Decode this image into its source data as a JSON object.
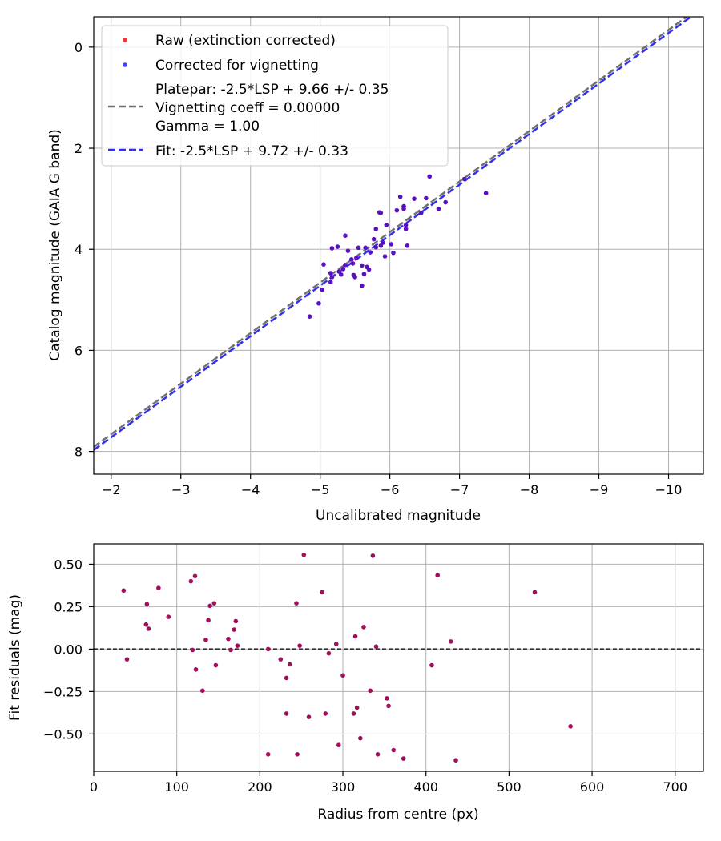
{
  "chart_data": [
    {
      "type": "scatter",
      "xlabel": "Uncalibrated magnitude",
      "ylabel": "Catalog magnitude (GAIA G band)",
      "xlim": [
        -1.75,
        -10.5
      ],
      "ylim": [
        8.45,
        -0.6
      ],
      "xticks": [
        -2,
        -3,
        -4,
        -5,
        -6,
        -7,
        -8,
        -9,
        -10
      ],
      "xtick_labels": [
        "−2",
        "−3",
        "−4",
        "−5",
        "−6",
        "−7",
        "−8",
        "−9",
        "−10"
      ],
      "yticks": [
        0,
        2,
        4,
        6,
        8
      ],
      "ytick_labels": [
        "0",
        "2",
        "4",
        "6",
        "8"
      ],
      "grid": true,
      "legend": {
        "position": "top-left",
        "raw_label": "Raw (extinction corrected)",
        "corrected_label": "Corrected for vignetting",
        "platepar_lines": [
          "Platepar: -2.5*LSP + 9.66 +/- 0.35",
          "Vignetting coeff = 0.00000",
          "Gamma = 1.00"
        ],
        "fit_label": "Fit: -2.5*LSP + 9.72 +/- 0.33"
      },
      "colors": {
        "raw": "#ff3030",
        "corrected": "#4040ff",
        "combined": "#5a10c0",
        "platepar_line": "#707070",
        "fit_line": "#3030ee"
      },
      "platepar_line": {
        "slope": 1.0,
        "intercept": 9.66
      },
      "fit_line": {
        "slope": 1.0,
        "intercept": 9.72
      },
      "points": [
        [
          -4.85,
          5.33
        ],
        [
          -4.98,
          5.07
        ],
        [
          -5.03,
          4.8
        ],
        [
          -5.05,
          4.3
        ],
        [
          -5.15,
          4.47
        ],
        [
          -5.15,
          4.65
        ],
        [
          -5.17,
          4.55
        ],
        [
          -5.17,
          3.98
        ],
        [
          -5.25,
          3.95
        ],
        [
          -5.27,
          4.44
        ],
        [
          -5.3,
          4.5
        ],
        [
          -5.33,
          4.39
        ],
        [
          -5.36,
          4.31
        ],
        [
          -5.36,
          3.73
        ],
        [
          -5.4,
          4.03
        ],
        [
          -5.45,
          4.2
        ],
        [
          -5.47,
          4.28
        ],
        [
          -5.48,
          4.51
        ],
        [
          -5.5,
          4.55
        ],
        [
          -5.52,
          4.17
        ],
        [
          -5.55,
          3.97
        ],
        [
          -5.6,
          4.32
        ],
        [
          -5.6,
          4.72
        ],
        [
          -5.63,
          4.49
        ],
        [
          -5.65,
          3.97
        ],
        [
          -5.67,
          4.35
        ],
        [
          -5.7,
          4.4
        ],
        [
          -5.72,
          4.06
        ],
        [
          -5.77,
          3.8
        ],
        [
          -5.8,
          3.96
        ],
        [
          -5.8,
          3.6
        ],
        [
          -5.85,
          3.27
        ],
        [
          -5.87,
          3.28
        ],
        [
          -5.87,
          3.93
        ],
        [
          -5.9,
          3.87
        ],
        [
          -5.93,
          4.14
        ],
        [
          -5.95,
          3.52
        ],
        [
          -6.02,
          3.9
        ],
        [
          -6.05,
          4.07
        ],
        [
          -6.1,
          3.23
        ],
        [
          -6.15,
          2.96
        ],
        [
          -6.2,
          3.2
        ],
        [
          -6.2,
          3.15
        ],
        [
          -6.23,
          3.6
        ],
        [
          -6.23,
          3.52
        ],
        [
          -6.25,
          3.93
        ],
        [
          -6.35,
          3.0
        ],
        [
          -6.45,
          3.28
        ],
        [
          -6.52,
          2.99
        ],
        [
          -6.57,
          2.56
        ],
        [
          -6.7,
          3.2
        ],
        [
          -6.8,
          3.07
        ],
        [
          -7.07,
          2.61
        ],
        [
          -7.38,
          2.89
        ]
      ]
    },
    {
      "type": "scatter",
      "xlabel": "Radius from centre (px)",
      "ylabel": "Fit residuals (mag)",
      "xlim": [
        0,
        734
      ],
      "ylim": [
        -0.72,
        0.62
      ],
      "xticks": [
        0,
        100,
        200,
        300,
        400,
        500,
        600,
        700
      ],
      "xtick_labels": [
        "0",
        "100",
        "200",
        "300",
        "400",
        "500",
        "600",
        "700"
      ],
      "yticks": [
        0.5,
        0.25,
        0.0,
        -0.25,
        -0.5
      ],
      "ytick_labels": [
        "0.50",
        "0.25",
        "0.00",
        "−0.25",
        "−0.50"
      ],
      "grid": true,
      "reference_line": 0.0,
      "colors": {
        "points": "#a0105a",
        "reference_line": "#333333"
      },
      "points": [
        [
          36,
          0.345
        ],
        [
          40,
          -0.06
        ],
        [
          63,
          0.145
        ],
        [
          64,
          0.265
        ],
        [
          66,
          0.12
        ],
        [
          78,
          0.36
        ],
        [
          90,
          0.19
        ],
        [
          117,
          0.4
        ],
        [
          119,
          -0.005
        ],
        [
          122,
          0.43
        ],
        [
          123,
          -0.12
        ],
        [
          131,
          -0.245
        ],
        [
          135,
          0.055
        ],
        [
          138,
          0.17
        ],
        [
          140,
          0.255
        ],
        [
          145,
          0.27
        ],
        [
          147,
          -0.095
        ],
        [
          162,
          0.06
        ],
        [
          165,
          -0.005
        ],
        [
          169,
          0.115
        ],
        [
          171,
          0.165
        ],
        [
          173,
          0.02
        ],
        [
          210,
          0.0
        ],
        [
          210,
          -0.62
        ],
        [
          225,
          -0.06
        ],
        [
          232,
          -0.38
        ],
        [
          232,
          -0.17
        ],
        [
          236,
          -0.09
        ],
        [
          244,
          0.27
        ],
        [
          245,
          -0.62
        ],
        [
          248,
          0.02
        ],
        [
          253,
          0.555
        ],
        [
          259,
          -0.4
        ],
        [
          275,
          0.335
        ],
        [
          279,
          -0.38
        ],
        [
          283,
          -0.025
        ],
        [
          292,
          0.03
        ],
        [
          295,
          -0.565
        ],
        [
          300,
          -0.155
        ],
        [
          313,
          -0.38
        ],
        [
          315,
          0.075
        ],
        [
          317,
          -0.345
        ],
        [
          321,
          -0.525
        ],
        [
          325,
          0.13
        ],
        [
          333,
          -0.245
        ],
        [
          336,
          0.55
        ],
        [
          340,
          0.015
        ],
        [
          342,
          -0.62
        ],
        [
          353,
          -0.29
        ],
        [
          355,
          -0.335
        ],
        [
          361,
          -0.595
        ],
        [
          373,
          -0.645
        ],
        [
          407,
          -0.095
        ],
        [
          414,
          0.435
        ],
        [
          430,
          0.045
        ],
        [
          436,
          -0.655
        ],
        [
          531,
          0.335
        ],
        [
          574,
          -0.455
        ]
      ]
    }
  ]
}
